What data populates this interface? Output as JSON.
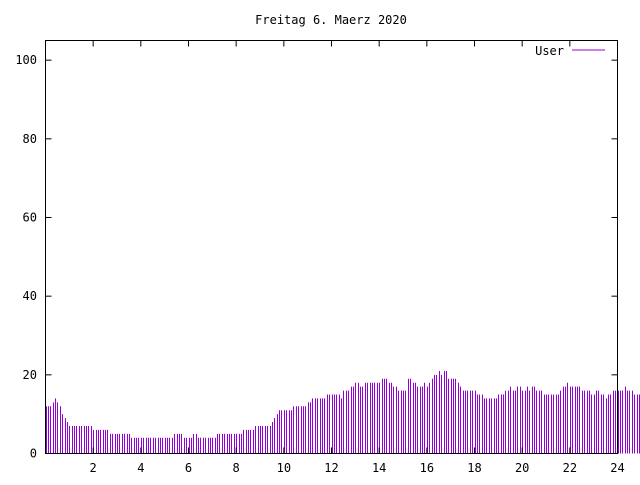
{
  "chart_data": {
    "type": "bar",
    "title": "Freitag 6. Maerz 2020",
    "xlabel": "",
    "ylabel": "",
    "xlim": [
      0,
      24
    ],
    "ylim": [
      0,
      105
    ],
    "grid": false,
    "legend_position": "top-right",
    "x_ticks": [
      2,
      4,
      6,
      8,
      10,
      12,
      14,
      16,
      18,
      20,
      22,
      24
    ],
    "y_ticks": [
      0,
      20,
      40,
      60,
      80,
      100
    ],
    "series": [
      {
        "name": "User",
        "color": "#9400d3",
        "step_hours": 0.1,
        "values": [
          12,
          12,
          12,
          13,
          14,
          13,
          12,
          10,
          9,
          8,
          7,
          7,
          7,
          7,
          7,
          7,
          7,
          7,
          7,
          7,
          6,
          6,
          6,
          6,
          6,
          6,
          6,
          5,
          5,
          5,
          5,
          5,
          5,
          5,
          5,
          5,
          4,
          4,
          4,
          4,
          4,
          4,
          4,
          4,
          4,
          4,
          4,
          4,
          4,
          4,
          4,
          4,
          4,
          4,
          5,
          5,
          5,
          5,
          4,
          4,
          4,
          4,
          5,
          5,
          4,
          4,
          4,
          4,
          4,
          4,
          4,
          4,
          5,
          5,
          5,
          5,
          5,
          5,
          5,
          5,
          5,
          5,
          5,
          6,
          6,
          6,
          6,
          6,
          7,
          7,
          7,
          7,
          7,
          7,
          7,
          8,
          9,
          10,
          11,
          11,
          11,
          11,
          11,
          11,
          12,
          12,
          12,
          12,
          12,
          12,
          13,
          13,
          14,
          14,
          14,
          14,
          14,
          14,
          15,
          15,
          15,
          15,
          15,
          15,
          14,
          16,
          16,
          16,
          17,
          17,
          18,
          18,
          17,
          17,
          18,
          18,
          18,
          18,
          18,
          18,
          18,
          19,
          19,
          19,
          18,
          18,
          17,
          17,
          16,
          16,
          16,
          16,
          19,
          19,
          18,
          18,
          17,
          17,
          17,
          18,
          17,
          18,
          19,
          20,
          20,
          21,
          20,
          21,
          21,
          19,
          19,
          19,
          19,
          18,
          17,
          16,
          16,
          16,
          16,
          16,
          16,
          15,
          15,
          15,
          14,
          14,
          14,
          14,
          14,
          14,
          15,
          15,
          15,
          16,
          16,
          17,
          16,
          16,
          17,
          17,
          16,
          16,
          17,
          16,
          17,
          17,
          16,
          16,
          16,
          15,
          15,
          15,
          15,
          15,
          15,
          15,
          16,
          17,
          17,
          18,
          17,
          17,
          17,
          17,
          17,
          16,
          16,
          16,
          16,
          15,
          15,
          16,
          16,
          15,
          15,
          14,
          15,
          15,
          16,
          16,
          16,
          16,
          16,
          17,
          16,
          16,
          16,
          15,
          15,
          15
        ]
      }
    ]
  }
}
